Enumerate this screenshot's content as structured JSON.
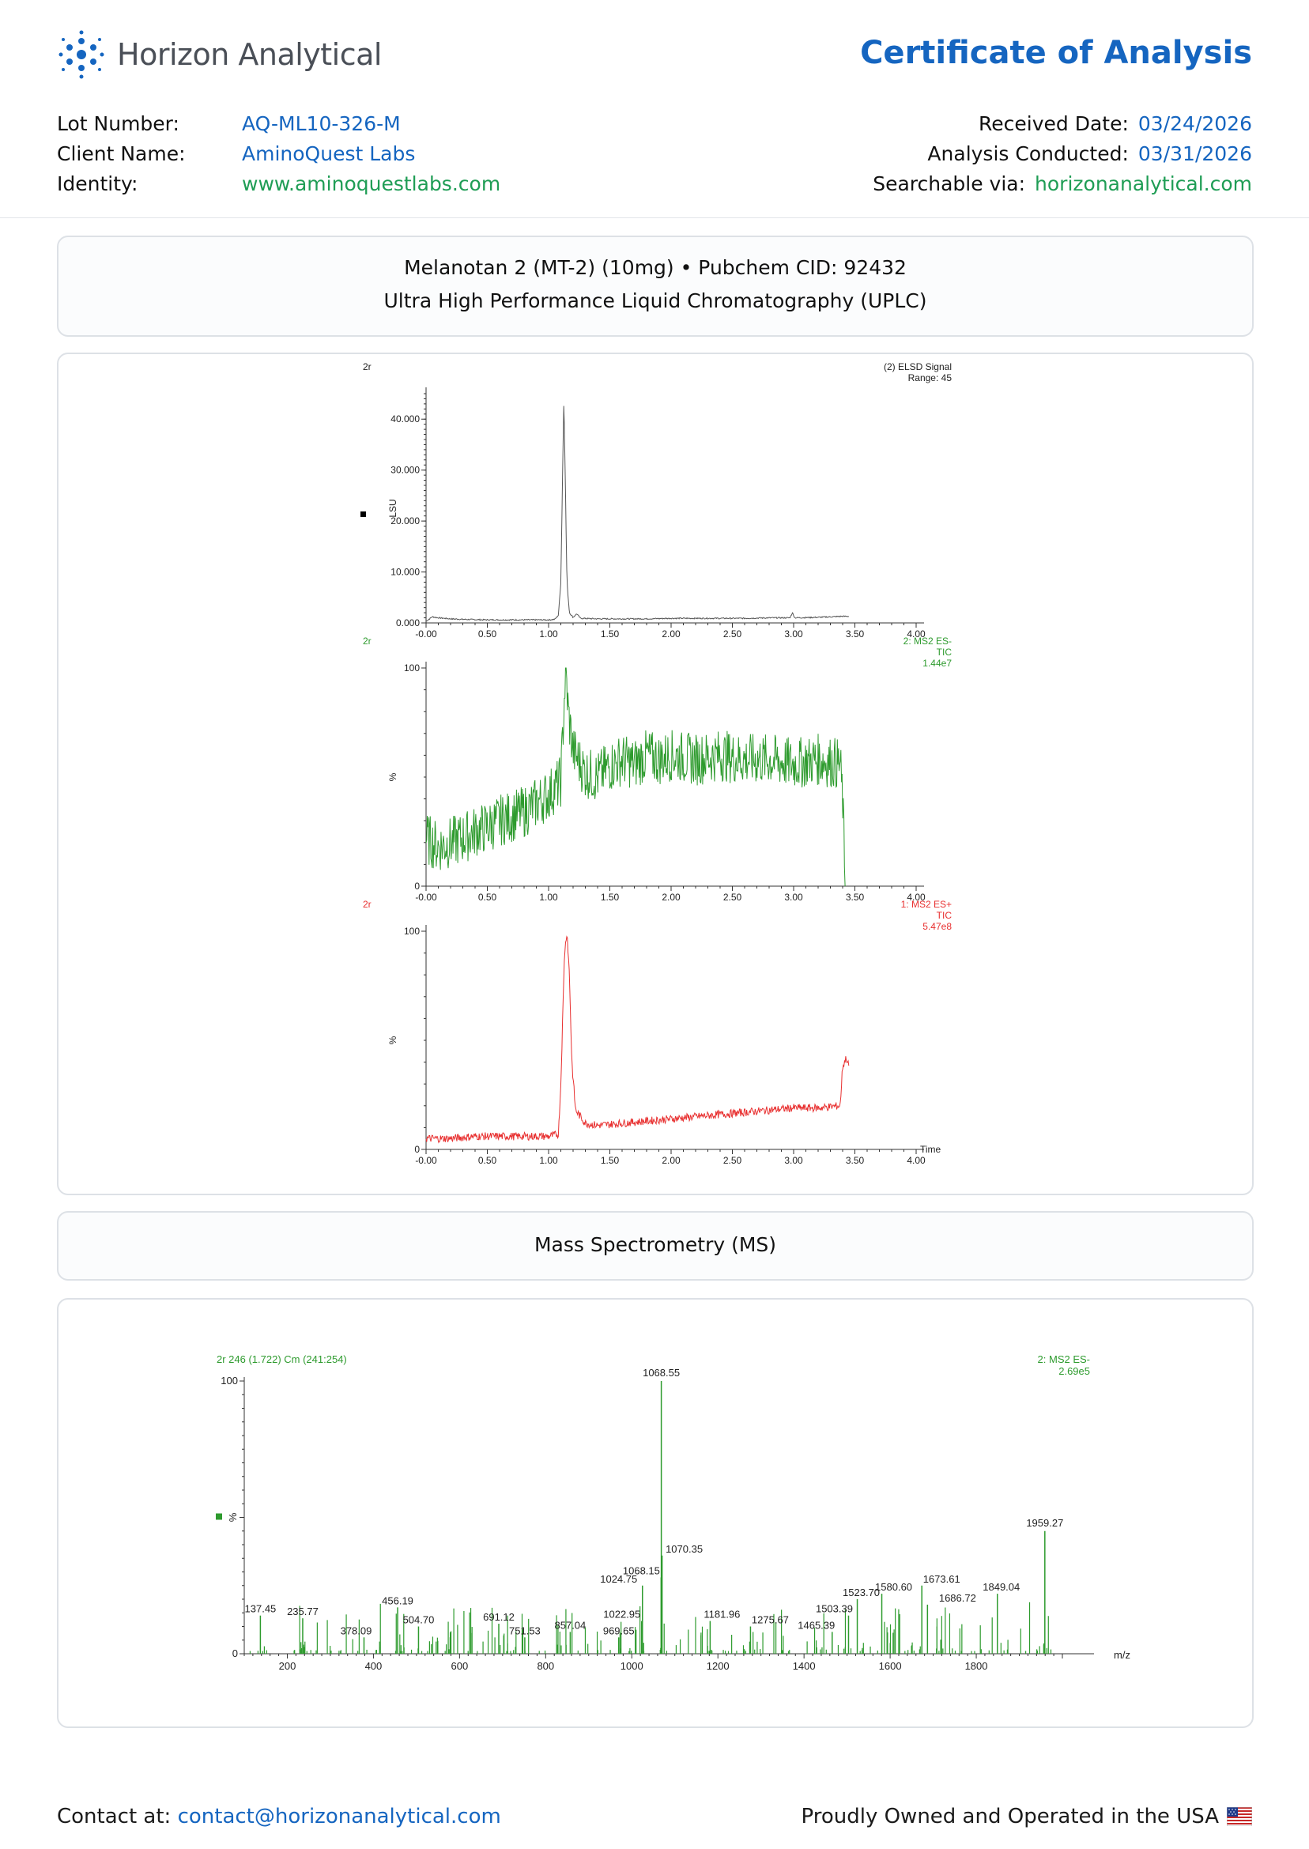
{
  "brand": {
    "name": "Horizon Analytical"
  },
  "document": {
    "title": "Certificate of Analysis"
  },
  "meta": {
    "lot_label": "Lot Number:",
    "lot_value": "AQ-ML10-326-M",
    "client_label": "Client Name:",
    "client_value": "AminoQuest Labs",
    "identity_label": "Identity:",
    "identity_value": "www.aminoquestlabs.com",
    "received_label": "Received Date:",
    "received_value": "03/24/2026",
    "conducted_label": "Analysis Conducted:",
    "conducted_value": "03/31/2026",
    "searchable_label": "Searchable via:",
    "searchable_value": "horizonanalytical.com"
  },
  "uplc_section": {
    "line1": "Melanotan 2 (MT-2) (10mg) • Pubchem CID: 92432",
    "line2": "Ultra High Performance Liquid Chromatography (UPLC)"
  },
  "ms_section": {
    "title": "Mass Spectrometry (MS)"
  },
  "footer": {
    "contact_label": "Contact at:",
    "contact_email": "contact@horizonanalytical.com",
    "made_in": "Proudly Owned and Operated in the USA"
  },
  "colors": {
    "accent_blue": "#1565c0",
    "accent_green": "#1f9d55",
    "elsd": "#555555",
    "ms_neg": "#2e9b2e",
    "ms_pos": "#e83030"
  },
  "chart_data": [
    {
      "type": "line",
      "id": "elsd",
      "sample_label": "2r",
      "trace_label": [
        "(2) ELSD Signal",
        "Range: 45"
      ],
      "ylabel": "LSU",
      "x_ticks": [
        "-0.00",
        "0.50",
        "1.00",
        "1.50",
        "2.00",
        "2.50",
        "3.00",
        "3.50",
        "4.00"
      ],
      "y_ticks": [
        "0.000",
        "10.000",
        "20.000",
        "30.000",
        "40.000"
      ],
      "xlim": [
        0,
        4
      ],
      "ylim": [
        0,
        45
      ],
      "points": [
        [
          0.0,
          0.3
        ],
        [
          0.05,
          1.2
        ],
        [
          0.1,
          1.0
        ],
        [
          0.2,
          0.8
        ],
        [
          0.3,
          0.7
        ],
        [
          0.5,
          0.6
        ],
        [
          0.8,
          0.6
        ],
        [
          1.0,
          0.6
        ],
        [
          1.05,
          0.7
        ],
        [
          1.08,
          1.5
        ],
        [
          1.1,
          8
        ],
        [
          1.115,
          30
        ],
        [
          1.125,
          44.5
        ],
        [
          1.135,
          30
        ],
        [
          1.15,
          8
        ],
        [
          1.17,
          2
        ],
        [
          1.2,
          1.1
        ],
        [
          1.23,
          1.8
        ],
        [
          1.26,
          0.9
        ],
        [
          1.4,
          0.8
        ],
        [
          1.6,
          0.8
        ],
        [
          1.8,
          0.8
        ],
        [
          2.0,
          0.9
        ],
        [
          2.2,
          0.9
        ],
        [
          2.4,
          0.9
        ],
        [
          2.6,
          0.9
        ],
        [
          2.8,
          1.0
        ],
        [
          2.97,
          1.0
        ],
        [
          2.99,
          2.0
        ],
        [
          3.01,
          1.0
        ],
        [
          3.2,
          1.1
        ],
        [
          3.4,
          1.3
        ],
        [
          3.45,
          1.3
        ]
      ]
    },
    {
      "type": "line",
      "id": "ms_neg_tic",
      "sample_label": "2r",
      "trace_label": [
        "2: MS2 ES-",
        "TIC",
        "1.44e7"
      ],
      "ylabel": "%",
      "x_ticks": [
        "-0.00",
        "0.50",
        "1.00",
        "1.50",
        "2.00",
        "2.50",
        "3.00",
        "3.50",
        "4.00"
      ],
      "y_ticks": [
        "0",
        "100"
      ],
      "xlim": [
        0,
        4
      ],
      "ylim": [
        0,
        100
      ],
      "points": [
        [
          0.0,
          22
        ],
        [
          0.1,
          18
        ],
        [
          0.2,
          20
        ],
        [
          0.3,
          22
        ],
        [
          0.4,
          25
        ],
        [
          0.5,
          27
        ],
        [
          0.6,
          30
        ],
        [
          0.7,
          32
        ],
        [
          0.8,
          34
        ],
        [
          0.9,
          38
        ],
        [
          1.0,
          42
        ],
        [
          1.1,
          48
        ],
        [
          1.12,
          75
        ],
        [
          1.14,
          100
        ],
        [
          1.16,
          80
        ],
        [
          1.2,
          62
        ],
        [
          1.3,
          52
        ],
        [
          1.4,
          50
        ],
        [
          1.5,
          55
        ],
        [
          1.6,
          58
        ],
        [
          1.7,
          56
        ],
        [
          1.8,
          60
        ],
        [
          1.9,
          58
        ],
        [
          2.0,
          60
        ],
        [
          2.2,
          58
        ],
        [
          2.4,
          60
        ],
        [
          2.6,
          58
        ],
        [
          2.8,
          58
        ],
        [
          3.0,
          56
        ],
        [
          3.2,
          58
        ],
        [
          3.38,
          56
        ],
        [
          3.4,
          40
        ],
        [
          3.42,
          2
        ]
      ]
    },
    {
      "type": "line",
      "id": "ms_pos_tic",
      "sample_label": "2r",
      "trace_label": [
        "1: MS2 ES+",
        "TIC",
        "5.47e8"
      ],
      "ylabel": "%",
      "xlabel": "Time",
      "x_ticks": [
        "-0.00",
        "0.50",
        "1.00",
        "1.50",
        "2.00",
        "2.50",
        "3.00",
        "3.50",
        "4.00"
      ],
      "y_ticks": [
        "0",
        "100"
      ],
      "xlim": [
        0,
        4
      ],
      "ylim": [
        0,
        100
      ],
      "points": [
        [
          0.0,
          5
        ],
        [
          0.2,
          5
        ],
        [
          0.4,
          6
        ],
        [
          0.6,
          6
        ],
        [
          0.8,
          6
        ],
        [
          1.0,
          6
        ],
        [
          1.08,
          7
        ],
        [
          1.1,
          30
        ],
        [
          1.13,
          90
        ],
        [
          1.15,
          100
        ],
        [
          1.17,
          80
        ],
        [
          1.19,
          40
        ],
        [
          1.22,
          18
        ],
        [
          1.3,
          12
        ],
        [
          1.4,
          11
        ],
        [
          1.6,
          12
        ],
        [
          1.8,
          13
        ],
        [
          2.0,
          14
        ],
        [
          2.2,
          15
        ],
        [
          2.4,
          16
        ],
        [
          2.6,
          17
        ],
        [
          2.8,
          18
        ],
        [
          3.0,
          19
        ],
        [
          3.2,
          19
        ],
        [
          3.38,
          20
        ],
        [
          3.4,
          38
        ],
        [
          3.43,
          42
        ],
        [
          3.45,
          38
        ]
      ]
    },
    {
      "type": "bar",
      "id": "ms_spectrum",
      "header_label": "2r 246 (1.722) Cm (241:254)",
      "trace_label": [
        "2: MS2 ES-",
        "2.69e5"
      ],
      "ylabel": "%",
      "xlabel": "m/z",
      "x_ticks": [
        "200",
        "400",
        "600",
        "800",
        "1000",
        "1200",
        "1400",
        "1600",
        "1800"
      ],
      "y_ticks": [
        "0",
        "100"
      ],
      "xlim": [
        100,
        2000
      ],
      "ylim": [
        0,
        100
      ],
      "peaks": [
        {
          "mz": 137.45,
          "int": 14,
          "label": "137.45"
        },
        {
          "mz": 235.77,
          "int": 13,
          "label": "235.77"
        },
        {
          "mz": 378.09,
          "int": 6,
          "label": "378.09"
        },
        {
          "mz": 456.19,
          "int": 17,
          "label": "456.19"
        },
        {
          "mz": 504.7,
          "int": 10,
          "label": "504.70"
        },
        {
          "mz": 691.12,
          "int": 11,
          "label": "691.12"
        },
        {
          "mz": 751.53,
          "int": 6,
          "label": "751.53"
        },
        {
          "mz": 857.04,
          "int": 8,
          "label": "857.04"
        },
        {
          "mz": 969.65,
          "int": 6,
          "label": "969.65"
        },
        {
          "mz": 1022.95,
          "int": 12,
          "label": "1022.95"
        },
        {
          "mz": 1024.75,
          "int": 25,
          "label": "1024.75"
        },
        {
          "mz": 1068.15,
          "int": 28,
          "label": "1068.15"
        },
        {
          "mz": 1068.55,
          "int": 100,
          "label": "1068.55"
        },
        {
          "mz": 1070.35,
          "int": 36,
          "label": "1070.35"
        },
        {
          "mz": 1181.96,
          "int": 12,
          "label": "1181.96"
        },
        {
          "mz": 1275.67,
          "int": 10,
          "label": "1275.67"
        },
        {
          "mz": 1465.39,
          "int": 8,
          "label": "1465.39"
        },
        {
          "mz": 1503.39,
          "int": 14,
          "label": "1503.39"
        },
        {
          "mz": 1523.7,
          "int": 20,
          "label": "1523.70"
        },
        {
          "mz": 1580.6,
          "int": 22,
          "label": "1580.60"
        },
        {
          "mz": 1673.61,
          "int": 25,
          "label": "1673.61"
        },
        {
          "mz": 1686.72,
          "int": 18,
          "label": "1686.72"
        },
        {
          "mz": 1849.04,
          "int": 22,
          "label": "1849.04"
        },
        {
          "mz": 1959.27,
          "int": 45,
          "label": "1959.27"
        }
      ]
    }
  ]
}
